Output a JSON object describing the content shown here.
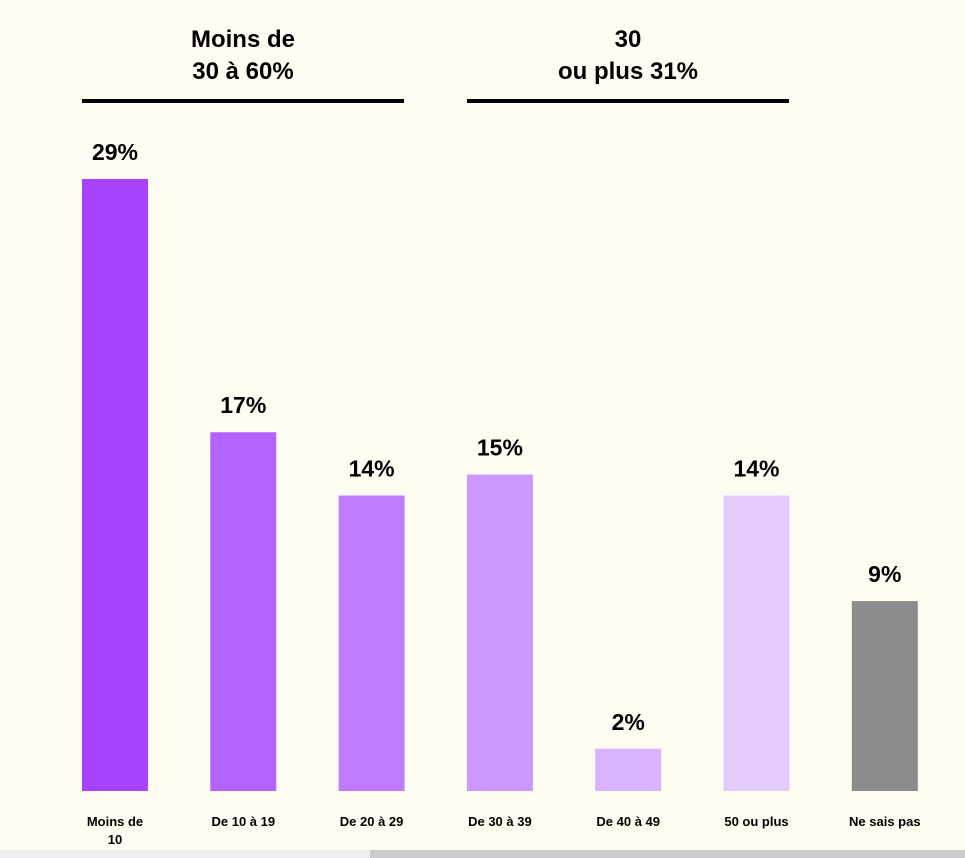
{
  "chart_data": {
    "type": "bar",
    "categories": [
      "Moins de 10",
      "De 10 à 19",
      "De 20 à 29",
      "De 30 à 39",
      "De 40 à 49",
      "50 ou plus",
      "Ne sais pas"
    ],
    "values": [
      29,
      17,
      14,
      15,
      2,
      14,
      9
    ],
    "data_labels": [
      "29%",
      "17%",
      "14%",
      "15%",
      "2%",
      "14%",
      "9%"
    ],
    "colors": [
      "#a742ff",
      "#b463ff",
      "#c07cff",
      "#cc98ff",
      "#d9b3ff",
      "#e5ccff",
      "#8c8c8c"
    ],
    "groups": [
      {
        "label_line1": "Moins de",
        "label_line2": "30 à 60%"
      },
      {
        "label_line1": "30",
        "label_line2": "ou plus 31%"
      }
    ],
    "title": "",
    "xlabel": "",
    "ylabel": "",
    "ylim": [
      0,
      29
    ],
    "grid": false
  }
}
